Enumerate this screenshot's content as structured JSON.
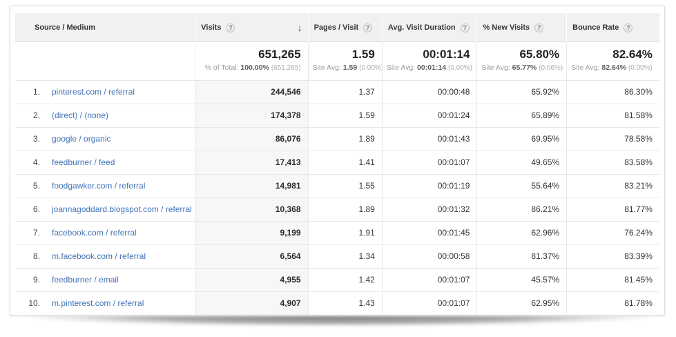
{
  "header": {
    "help_glyph": "?",
    "sort_desc_glyph": "↓",
    "columns": [
      {
        "label": "Source / Medium",
        "has_help": false,
        "sorted": false
      },
      {
        "label": "Visits",
        "has_help": true,
        "sorted": true
      },
      {
        "label": "Pages / Visit",
        "has_help": true,
        "sorted": false
      },
      {
        "label": "Avg. Visit Duration",
        "has_help": true,
        "sorted": false
      },
      {
        "label": "% New Visits",
        "has_help": true,
        "sorted": false
      },
      {
        "label": "Bounce Rate",
        "has_help": true,
        "sorted": false
      }
    ]
  },
  "summary": {
    "visits": {
      "value": "651,265",
      "label": "% of Total:",
      "avg": "100.00%",
      "delta": "(651,265)"
    },
    "pages_per_visit": {
      "value": "1.59",
      "label": "Site Avg:",
      "avg": "1.59",
      "delta": "(0.00%)"
    },
    "avg_visit_duration": {
      "value": "00:01:14",
      "label": "Site Avg:",
      "avg": "00:01:14",
      "delta": "(0.00%)"
    },
    "pct_new_visits": {
      "value": "65.80%",
      "label": "Site Avg:",
      "avg": "65.77%",
      "delta": "(0.06%)"
    },
    "bounce_rate": {
      "value": "82.64%",
      "label": "Site Avg:",
      "avg": "82.64%",
      "delta": "(0.00%)"
    }
  },
  "rows": [
    {
      "rank": "1.",
      "source": "pinterest.com / referral",
      "visits": "244,546",
      "pages_per_visit": "1.37",
      "avg_visit_duration": "00:00:48",
      "pct_new_visits": "65.92%",
      "bounce_rate": "86.30%"
    },
    {
      "rank": "2.",
      "source": "(direct) / (none)",
      "visits": "174,378",
      "pages_per_visit": "1.59",
      "avg_visit_duration": "00:01:24",
      "pct_new_visits": "65.89%",
      "bounce_rate": "81.58%"
    },
    {
      "rank": "3.",
      "source": "google / organic",
      "visits": "86,076",
      "pages_per_visit": "1.89",
      "avg_visit_duration": "00:01:43",
      "pct_new_visits": "69.95%",
      "bounce_rate": "78.58%"
    },
    {
      "rank": "4.",
      "source": "feedburner / feed",
      "visits": "17,413",
      "pages_per_visit": "1.41",
      "avg_visit_duration": "00:01:07",
      "pct_new_visits": "49.65%",
      "bounce_rate": "83.58%"
    },
    {
      "rank": "5.",
      "source": "foodgawker.com / referral",
      "visits": "14,981",
      "pages_per_visit": "1.55",
      "avg_visit_duration": "00:01:19",
      "pct_new_visits": "55.64%",
      "bounce_rate": "83.21%"
    },
    {
      "rank": "6.",
      "source": "joannagoddard.blogspot.com / referral",
      "visits": "10,368",
      "pages_per_visit": "1.89",
      "avg_visit_duration": "00:01:32",
      "pct_new_visits": "86.21%",
      "bounce_rate": "81.77%"
    },
    {
      "rank": "7.",
      "source": "facebook.com / referral",
      "visits": "9,199",
      "pages_per_visit": "1.91",
      "avg_visit_duration": "00:01:45",
      "pct_new_visits": "62.96%",
      "bounce_rate": "76.24%"
    },
    {
      "rank": "8.",
      "source": "m.facebook.com / referral",
      "visits": "6,564",
      "pages_per_visit": "1.34",
      "avg_visit_duration": "00:00:58",
      "pct_new_visits": "81.37%",
      "bounce_rate": "83.39%"
    },
    {
      "rank": "9.",
      "source": "feedburner / email",
      "visits": "4,955",
      "pages_per_visit": "1.42",
      "avg_visit_duration": "00:01:07",
      "pct_new_visits": "45.57%",
      "bounce_rate": "81.45%"
    },
    {
      "rank": "10.",
      "source": "m.pinterest.com / referral",
      "visits": "4,907",
      "pages_per_visit": "1.43",
      "avg_visit_duration": "00:01:07",
      "pct_new_visits": "62.95%",
      "bounce_rate": "81.78%"
    }
  ],
  "colors": {
    "link_blue": "#4374b7",
    "header_bg": "#f1f1f1",
    "row_border": "#e7e7e7",
    "sorted_column_bg": "#f7f7f7"
  }
}
